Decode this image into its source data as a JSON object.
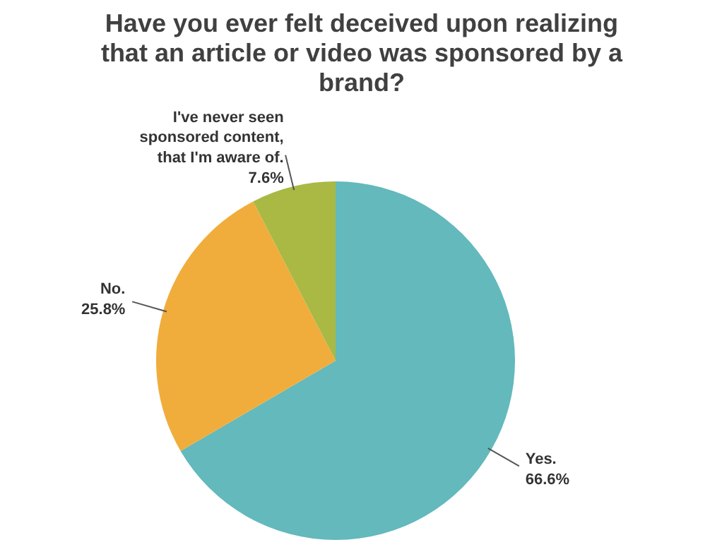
{
  "chart_data": {
    "type": "pie",
    "title": "Have you ever felt deceived upon realizing that an article or video was sponsored by a brand?",
    "categories": [
      "Yes.",
      "No.",
      "I've never seen sponsored content, that I'm aware of."
    ],
    "values": [
      66.6,
      25.8,
      7.6
    ],
    "colors": [
      "#63b9bc",
      "#f0ad3c",
      "#a9b944"
    ],
    "value_labels": [
      "66.6%",
      "25.8%",
      "7.6%"
    ]
  }
}
